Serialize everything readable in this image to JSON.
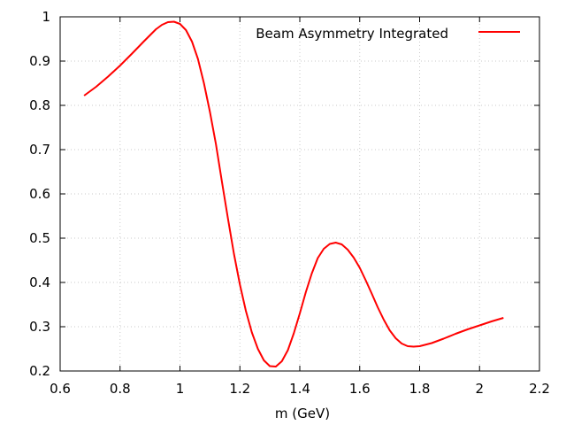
{
  "chart_data": {
    "type": "line",
    "title": "",
    "xlabel": "m (GeV)",
    "ylabel": "",
    "xlim": [
      0.6,
      2.2
    ],
    "ylim": [
      0.2,
      1.0
    ],
    "xticks": [
      "0.6",
      "0.8",
      "1",
      "1.2",
      "1.4",
      "1.6",
      "1.8",
      "2",
      "2.2"
    ],
    "yticks": [
      "0.2",
      "0.3",
      "0.4",
      "0.5",
      "0.6",
      "0.7",
      "0.8",
      "0.9",
      "1"
    ],
    "grid": true,
    "legend_position": "top-right",
    "series": [
      {
        "name": "Beam Asymmetry Integrated",
        "color": "#ff0000",
        "points": [
          [
            0.68,
            0.822
          ],
          [
            0.72,
            0.842
          ],
          [
            0.76,
            0.865
          ],
          [
            0.8,
            0.89
          ],
          [
            0.84,
            0.917
          ],
          [
            0.88,
            0.945
          ],
          [
            0.92,
            0.972
          ],
          [
            0.94,
            0.982
          ],
          [
            0.96,
            0.988
          ],
          [
            0.98,
            0.989
          ],
          [
            1.0,
            0.984
          ],
          [
            1.02,
            0.97
          ],
          [
            1.04,
            0.944
          ],
          [
            1.06,
            0.905
          ],
          [
            1.08,
            0.85
          ],
          [
            1.1,
            0.785
          ],
          [
            1.12,
            0.712
          ],
          [
            1.14,
            0.628
          ],
          [
            1.16,
            0.545
          ],
          [
            1.18,
            0.465
          ],
          [
            1.2,
            0.395
          ],
          [
            1.22,
            0.336
          ],
          [
            1.24,
            0.287
          ],
          [
            1.26,
            0.25
          ],
          [
            1.28,
            0.224
          ],
          [
            1.3,
            0.211
          ],
          [
            1.32,
            0.21
          ],
          [
            1.34,
            0.222
          ],
          [
            1.36,
            0.247
          ],
          [
            1.38,
            0.285
          ],
          [
            1.4,
            0.33
          ],
          [
            1.42,
            0.378
          ],
          [
            1.44,
            0.42
          ],
          [
            1.46,
            0.455
          ],
          [
            1.48,
            0.476
          ],
          [
            1.5,
            0.487
          ],
          [
            1.52,
            0.49
          ],
          [
            1.54,
            0.486
          ],
          [
            1.56,
            0.474
          ],
          [
            1.58,
            0.456
          ],
          [
            1.6,
            0.433
          ],
          [
            1.62,
            0.405
          ],
          [
            1.64,
            0.375
          ],
          [
            1.66,
            0.344
          ],
          [
            1.68,
            0.316
          ],
          [
            1.7,
            0.292
          ],
          [
            1.72,
            0.274
          ],
          [
            1.74,
            0.262
          ],
          [
            1.76,
            0.256
          ],
          [
            1.78,
            0.255
          ],
          [
            1.8,
            0.256
          ],
          [
            1.84,
            0.263
          ],
          [
            1.88,
            0.273
          ],
          [
            1.92,
            0.284
          ],
          [
            1.96,
            0.294
          ],
          [
            2.0,
            0.303
          ],
          [
            2.04,
            0.312
          ],
          [
            2.08,
            0.32
          ]
        ]
      }
    ]
  }
}
